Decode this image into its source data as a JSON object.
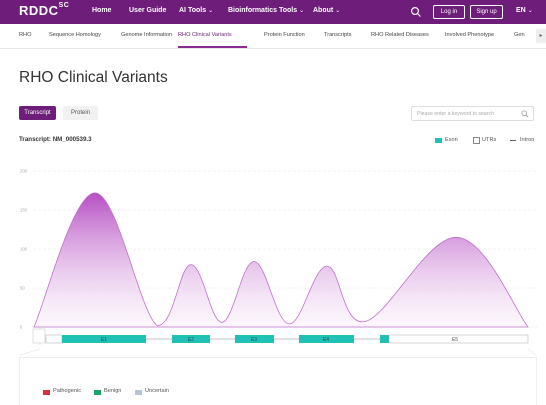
{
  "header": {
    "logo": "RDDC",
    "logo_sup": "SC",
    "nav": [
      "Home",
      "User Guide",
      "AI Tools",
      "Bioinformatics Tools",
      "About"
    ],
    "login": "Log in",
    "signup": "Sign up",
    "lang": "EN"
  },
  "subnav": {
    "items": [
      "RHO",
      "Sequence Homology",
      "Genome Information",
      "RHO Clinical Variants",
      "Protein Function",
      "Transcripts",
      "RHO Related Diseases",
      "Involved Phenotype",
      "Gen"
    ],
    "active": "RHO Clinical Variants"
  },
  "page": {
    "title": "RHO Clinical Variants",
    "tab_transcript": "Transcript",
    "tab_protein": "Protein",
    "search_placeholder": "Please enter a keyword to search",
    "transcript_label": "Transcript: NM_000539.3"
  },
  "legend_top": {
    "exon": "Exon",
    "utrs": "UTRs",
    "intron": "Intron"
  },
  "legend_bottom": {
    "pathogenic": "Pathogenic",
    "benign": "Benign",
    "uncertain": "Uncertain"
  },
  "colors": {
    "brand": "#6e1e7a",
    "exon": "#1fc1b6",
    "pathogenic": "#d6303b",
    "benign": "#1aa36b",
    "uncertain": "#b4c3d6"
  },
  "chart_data": {
    "type": "area",
    "y_ticks": [
      0,
      50,
      100,
      150,
      200
    ],
    "ylim": [
      0,
      200
    ],
    "peaks": [
      {
        "label": "E1",
        "value": 172
      },
      {
        "label": "E2",
        "value": 80
      },
      {
        "label": "E3",
        "value": 84
      },
      {
        "label": "E4",
        "value": 78
      },
      {
        "label": "E5",
        "value": 115
      }
    ],
    "exons": [
      "E1",
      "E2",
      "E3",
      "E4",
      "E5"
    ]
  }
}
